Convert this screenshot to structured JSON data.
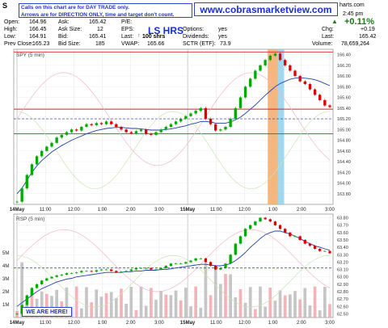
{
  "header": {
    "symbol": "S",
    "site_fragment": "harts.com",
    "time": "2:45 pm",
    "pct_change": "+0.11%",
    "rows": [
      [
        {
          "k": "Open:",
          "v": "164.96"
        },
        {
          "k": "Ask:",
          "v": "165.42"
        },
        {
          "k": "P/E:",
          "v": ""
        }
      ],
      [
        {
          "k": "High:",
          "v": "166.45"
        },
        {
          "k": "Ask Size:",
          "v": "12"
        },
        {
          "k": "EPS:",
          "v": ""
        },
        {
          "k": "Options:",
          "v": "yes"
        }
      ],
      [
        {
          "k": "Low:",
          "v": "164.91"
        },
        {
          "k": "Bid:",
          "v": "165.41"
        },
        {
          "k": "Last:",
          "v": "100 shrs"
        },
        {
          "k": "Dividends:",
          "v": "yes"
        }
      ],
      [
        {
          "k": "Prev Close:",
          "v": "165.23"
        },
        {
          "k": "Bid Size:",
          "v": "185"
        },
        {
          "k": "VWAP:",
          "v": "165.66"
        },
        {
          "k": "SCTR (ETF):",
          "v": "73.9"
        }
      ]
    ],
    "chg_label": "Chg:",
    "chg_value": "+0.19",
    "last_label": "Last:",
    "last_value": "165.42",
    "volume_label": "Volume:",
    "volume_value": "78,659,264"
  },
  "notes": {
    "line1": "Calls on this chart are for DAY TRADE only.",
    "line2": "Arrows are for DIRECTION ONLY, time and target don't count."
  },
  "brand": "www.cobrasmarketview.com",
  "ls_hrs": "LS HRS",
  "we_are_here": "WE ARE HERE!",
  "colors": {
    "up_candle": "#00aa00",
    "down_candle": "#dd0000",
    "ma_line": "#2244aa",
    "resistance": "#dd2222",
    "support": "#00aa00",
    "dashed": "#2233aa",
    "highlight_orange": "#f4a460",
    "highlight_blue": "#87ceeb"
  },
  "chart_data": [
    {
      "type": "line",
      "title": "",
      "panel_label": "SPY (5 min)",
      "ylim": [
        163.6,
        166.5
      ],
      "y_ticks": [
        163.8,
        164.0,
        164.2,
        164.4,
        164.6,
        164.8,
        165.0,
        165.2,
        165.4,
        165.6,
        165.8,
        166.0,
        166.2,
        166.4
      ],
      "x_tick_labels": [
        "14May",
        "11:00",
        "12:00",
        "1:00",
        "2:00",
        "3:00",
        "15May",
        "11:00",
        "12:00",
        "1:00",
        "2:00",
        "3:00"
      ],
      "horizontal_lines": {
        "resistance": 165.38,
        "support": 164.92,
        "dashed": 165.2
      },
      "series": [
        {
          "values": [
            163.65,
            163.9,
            164.15,
            164.35,
            164.5,
            164.6,
            164.68,
            164.75,
            164.85,
            164.9,
            164.95,
            165.0,
            164.98,
            165.05,
            165.1,
            165.08,
            165.12,
            165.1,
            165.15,
            165.1,
            165.05,
            165.0,
            164.95,
            164.93,
            164.97,
            165.0,
            164.92,
            164.9,
            164.95,
            165.0,
            165.05,
            165.1,
            165.15,
            165.2,
            165.25,
            165.3,
            165.35,
            165.4,
            165.2,
            165.1,
            164.98,
            165.0,
            165.05,
            165.2,
            165.4,
            165.6,
            165.8,
            165.95,
            166.1,
            166.2,
            166.3,
            166.38,
            166.42,
            166.3,
            166.2,
            166.1,
            166.0,
            165.9,
            165.85,
            165.75,
            165.65,
            165.55,
            165.45,
            165.42
          ]
        },
        {
          "values": [
            163.8,
            163.9,
            164.05,
            164.2,
            164.32,
            164.42,
            164.5,
            164.58,
            164.64,
            164.7,
            164.75,
            164.8,
            164.84,
            164.88,
            164.92,
            164.95,
            164.98,
            165.0,
            165.02,
            165.03,
            165.04,
            165.04,
            165.03,
            165.02,
            165.02,
            165.01,
            165.0,
            164.99,
            164.99,
            164.99,
            165.0,
            165.01,
            165.03,
            165.05,
            165.07,
            165.1,
            165.12,
            165.15,
            165.15,
            165.14,
            165.12,
            165.12,
            165.12,
            165.14,
            165.18,
            165.23,
            165.3,
            165.38,
            165.46,
            165.55,
            165.64,
            165.72,
            165.8,
            165.86,
            165.9,
            165.94,
            165.96,
            165.97,
            165.96,
            165.95,
            165.93,
            165.9,
            165.86,
            165.82
          ]
        }
      ]
    },
    {
      "type": "line",
      "title": "",
      "panel_label": "RSP (5 min)",
      "ylim": [
        62.45,
        63.85
      ],
      "y_ticks": [
        62.5,
        62.6,
        62.7,
        62.8,
        62.9,
        63.0,
        63.1,
        63.2,
        63.3,
        63.4,
        63.5,
        63.6,
        63.7,
        63.8
      ],
      "volume_ticks": [
        "1M",
        "2M",
        "3M",
        "4M",
        "5M"
      ],
      "x_tick_labels": [
        "14May",
        "11:00",
        "12:00",
        "1:00",
        "2:00",
        "3:00",
        "15May",
        "11:00",
        "12:00",
        "1:00",
        "2:00",
        "3:00"
      ],
      "dashed_line": 63.12,
      "series": [
        {
          "values": [
            62.5,
            62.62,
            62.75,
            62.85,
            62.9,
            62.95,
            62.98,
            63.0,
            63.02,
            63.03,
            63.05,
            63.05,
            63.06,
            63.08,
            63.08,
            63.07,
            63.09,
            63.1,
            63.1,
            63.08,
            63.06,
            63.07,
            63.08,
            63.1,
            63.12,
            63.12,
            63.12,
            63.1,
            63.1,
            63.12,
            63.15,
            63.18,
            63.18,
            63.18,
            63.2,
            63.22,
            63.25,
            63.25,
            63.2,
            63.15,
            63.1,
            63.12,
            63.18,
            63.3,
            63.45,
            63.55,
            63.65,
            63.7,
            63.75,
            63.8,
            63.78,
            63.75,
            63.7,
            63.65,
            63.6,
            63.55,
            63.55,
            63.5,
            63.45,
            63.42,
            63.38,
            63.35,
            63.35,
            63.32
          ]
        },
        {
          "values": [
            62.6,
            62.65,
            62.7,
            62.75,
            62.8,
            62.84,
            62.87,
            62.9,
            62.93,
            62.95,
            62.97,
            62.98,
            63.0,
            63.01,
            63.02,
            63.03,
            63.04,
            63.05,
            63.06,
            63.06,
            63.06,
            63.06,
            63.07,
            63.07,
            63.08,
            63.08,
            63.09,
            63.09,
            63.09,
            63.1,
            63.1,
            63.11,
            63.12,
            63.13,
            63.14,
            63.15,
            63.16,
            63.17,
            63.17,
            63.16,
            63.15,
            63.15,
            63.16,
            63.18,
            63.22,
            63.27,
            63.33,
            63.4,
            63.46,
            63.52,
            63.57,
            63.6,
            63.62,
            63.62,
            63.6,
            63.58,
            63.55,
            63.52,
            63.48,
            63.45,
            63.42,
            63.4,
            63.38,
            63.36
          ]
        }
      ]
    }
  ]
}
